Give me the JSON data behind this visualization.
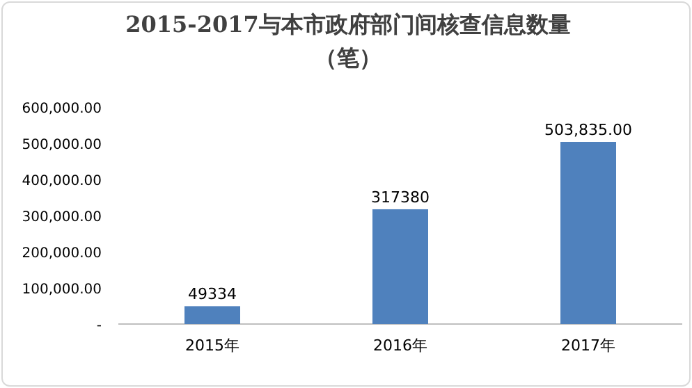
{
  "chart_data": {
    "type": "bar",
    "title": "2015-2017与本市政府部门间核查信息数量（笔）",
    "categories": [
      "2015年",
      "2016年",
      "2017年"
    ],
    "values": [
      49334,
      317380,
      503835
    ],
    "value_labels": [
      "49334",
      "317380",
      "503,835.00"
    ],
    "color": "#4f81bd",
    "ylim": [
      0,
      600000
    ],
    "yticks": [
      {
        "value": 0,
        "label": "-"
      },
      {
        "value": 100000,
        "label": "100,000.00"
      },
      {
        "value": 200000,
        "label": "200,000.00"
      },
      {
        "value": 300000,
        "label": "300,000.00"
      },
      {
        "value": 400000,
        "label": "400,000.00"
      },
      {
        "value": 500000,
        "label": "500,000.00"
      },
      {
        "value": 600000,
        "label": "600,000.00"
      }
    ],
    "grid": false
  }
}
